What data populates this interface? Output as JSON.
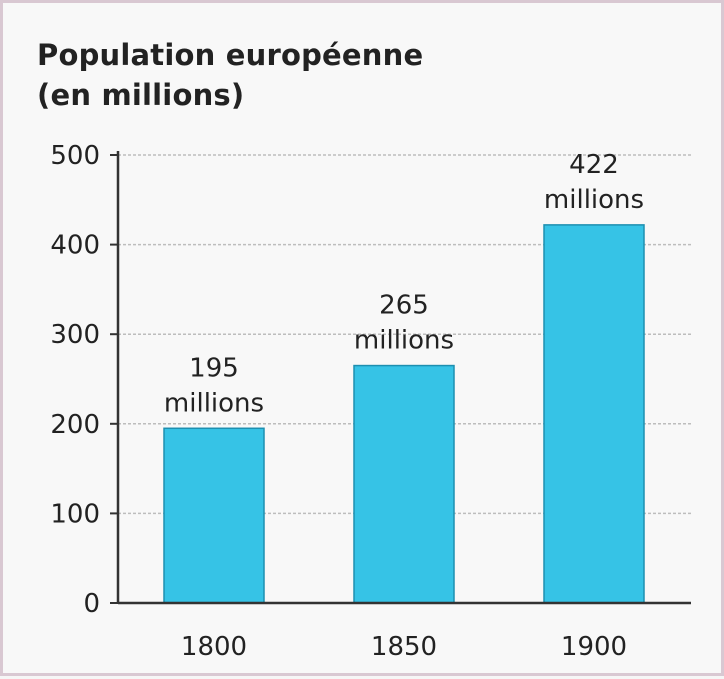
{
  "chart_data": {
    "type": "bar",
    "title": "Population européenne\n(en millions)",
    "xlabel": "",
    "ylabel": "",
    "categories": [
      "1800",
      "1850",
      "1900"
    ],
    "values": [
      195,
      265,
      422
    ],
    "data_labels": [
      {
        "value": "195",
        "unit": "millions"
      },
      {
        "value": "265",
        "unit": "millions"
      },
      {
        "value": "422",
        "unit": "millions"
      }
    ],
    "ylim": [
      0,
      500
    ],
    "yticks": [
      "0",
      "100",
      "200",
      "300",
      "400",
      "500"
    ],
    "grid": true,
    "legend": "none",
    "colors": {
      "bar": "#36c3e6",
      "bar_edge": "#1d8fb0",
      "axis": "#333333",
      "grid": "#bdbdbd",
      "frame": "#d9c8d2"
    }
  }
}
